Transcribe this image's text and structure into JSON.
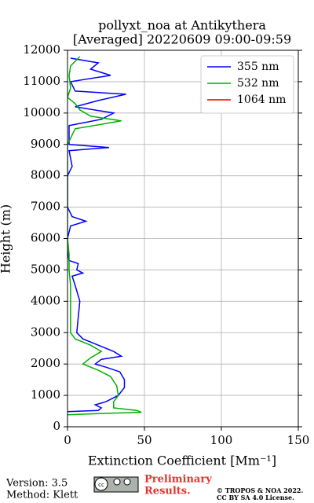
{
  "chart_data": {
    "type": "profile",
    "title": "pollyxt_noa at Antikythera",
    "subtitle": "[Averaged] 20220609 09:00-09:59",
    "x_label": "Extinction Coefficient [Mm⁻¹]",
    "y_label": "Height (m)",
    "xlim": [
      0,
      150
    ],
    "xticks": [
      0,
      50,
      100,
      150
    ],
    "ylim": [
      0,
      12000
    ],
    "yticks": [
      0,
      1000,
      2000,
      3000,
      4000,
      5000,
      6000,
      7000,
      8000,
      9000,
      10000,
      11000,
      12000
    ],
    "grid": true,
    "legend": "upper right",
    "series": [
      {
        "name": "355 nm",
        "color": "#0000ff",
        "heights": [
          480,
          520,
          600,
          700,
          800,
          1000,
          1250,
          1500,
          1750,
          1900,
          2000,
          2150,
          2250,
          2400,
          2600,
          2800,
          3000,
          3500,
          4000,
          4500,
          4800,
          4900,
          5000,
          5200,
          5300,
          5600,
          6000,
          6400,
          6550,
          6700,
          7000,
          8000,
          8300,
          8800,
          8900,
          9000,
          9600,
          9800,
          10000,
          10200,
          10400,
          10600,
          10700,
          11000,
          11200,
          11400,
          11600,
          11750
        ],
        "values": [
          -1,
          20,
          22,
          18,
          25,
          33,
          37,
          37,
          34,
          25,
          18,
          22,
          35,
          30,
          20,
          10,
          6,
          7,
          8,
          5,
          3,
          10,
          6,
          7,
          1,
          0,
          0,
          2,
          12,
          3,
          0,
          0,
          3,
          1,
          27,
          1,
          1,
          22,
          30,
          5,
          20,
          38,
          5,
          2,
          28,
          15,
          20,
          2
        ]
      },
      {
        "name": "532 nm",
        "color": "#00b000",
        "heights": [
          380,
          420,
          460,
          520,
          600,
          800,
          1000,
          1300,
          1600,
          1800,
          2000,
          2200,
          2400,
          2600,
          2800,
          3000,
          3500,
          4000,
          4500,
          5000,
          5500,
          6000,
          6500,
          7000,
          8000,
          9000,
          9500,
          9750,
          9900,
          10100,
          10300,
          10500,
          10800,
          11200,
          11500,
          11800
        ],
        "values": [
          0,
          20,
          48,
          45,
          30,
          30,
          33,
          32,
          28,
          20,
          10,
          15,
          22,
          15,
          5,
          2,
          2,
          2,
          2,
          1,
          1,
          0,
          0,
          0,
          0,
          0,
          5,
          35,
          15,
          8,
          5,
          0,
          2,
          1,
          2,
          8
        ]
      },
      {
        "name": "1064 nm",
        "color": "#e00000",
        "heights": [],
        "values": []
      }
    ]
  },
  "footer": {
    "version": "Version: 3.5",
    "method": "Method: Klett",
    "preliminary_1": "Preliminary",
    "preliminary_2": "Results.",
    "copyright_1": "© TROPOS & NOA 2022.",
    "copyright_2": "CC BY SA 4.0 License.",
    "cc_logo": "cc"
  }
}
